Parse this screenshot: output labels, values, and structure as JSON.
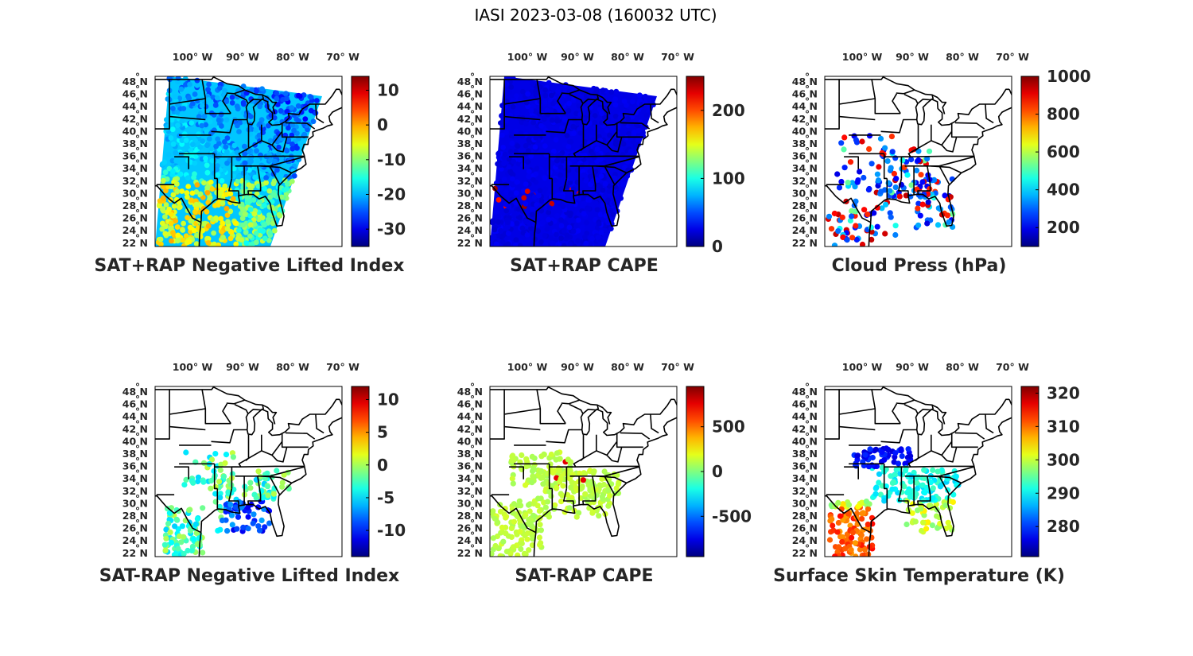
{
  "figure_title": "IASI 2023-03-08 (160032 UTC)",
  "lat_labels": [
    "48",
    "46",
    "44",
    "42",
    "40",
    "38",
    "36",
    "34",
    "32",
    "30",
    "28",
    "26",
    "24",
    "22"
  ],
  "lat_hemisphere": "N",
  "lon_labels": [
    "100",
    "90",
    "80",
    "70"
  ],
  "lon_hemisphere": "W",
  "degree_symbol": "°",
  "chart_data": [
    {
      "type": "map",
      "title": "SAT+RAP Negative Lifted Index",
      "colorbar": {
        "colormap": "jet",
        "range": [
          -35,
          14
        ],
        "ticks": [
          10,
          0,
          -10,
          -20,
          -30
        ],
        "tick_labels": [
          "10",
          "0",
          "-10",
          "-20",
          "-30"
        ]
      },
      "field": "lifted_index_full_swath"
    },
    {
      "type": "map",
      "title": "SAT+RAP CAPE",
      "colorbar": {
        "colormap": "jet",
        "range": [
          0,
          250
        ],
        "ticks": [
          200,
          100,
          0
        ],
        "tick_labels": [
          "200",
          "100",
          "0"
        ]
      },
      "field": "cape_full_swath"
    },
    {
      "type": "map",
      "title": "Cloud Press (hPa)",
      "colorbar": {
        "colormap": "jet",
        "range": [
          100,
          1000
        ],
        "ticks": [
          1000,
          800,
          600,
          400,
          200
        ],
        "tick_labels": [
          "1000",
          "800",
          "600",
          "400",
          "200"
        ]
      },
      "field": "cloud_pressure_points"
    },
    {
      "type": "map",
      "title": "SAT-RAP Negative Lifted Index",
      "colorbar": {
        "colormap": "jet",
        "range": [
          -14,
          12
        ],
        "ticks": [
          10,
          5,
          0,
          -5,
          -10
        ],
        "tick_labels": [
          "10",
          "5",
          "0",
          "-5",
          "-10"
        ]
      },
      "field": "lifted_index_diff_points"
    },
    {
      "type": "map",
      "title": "SAT-RAP CAPE",
      "colorbar": {
        "colormap": "jet",
        "range": [
          -950,
          950
        ],
        "ticks": [
          500,
          0,
          -500
        ],
        "tick_labels": [
          "500",
          "0",
          "-500"
        ]
      },
      "field": "cape_diff_points"
    },
    {
      "type": "map",
      "title": "Surface Skin Temperature (K)",
      "colorbar": {
        "colormap": "jet",
        "range": [
          271,
          322
        ],
        "ticks": [
          320,
          310,
          300,
          290,
          280
        ],
        "tick_labels": [
          "320",
          "310",
          "300",
          "290",
          "280"
        ]
      },
      "field": "skin_temperature_points"
    }
  ]
}
